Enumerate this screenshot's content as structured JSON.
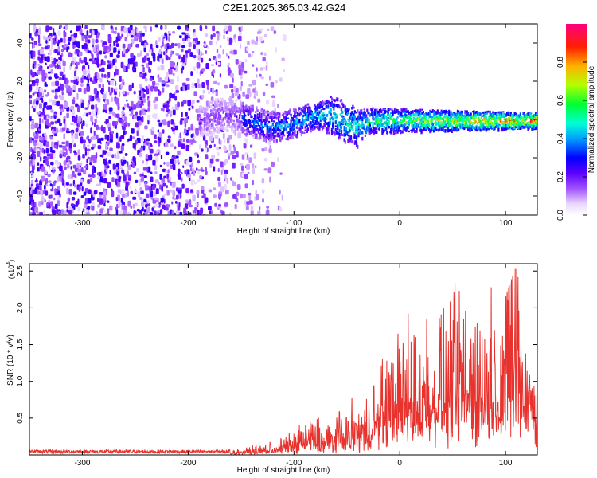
{
  "figure": {
    "title": "C2E1.2025.365.03.42.G24"
  },
  "chart_data": [
    {
      "type": "heatmap",
      "panel": "spectrogram",
      "xlabel": "Height of straight line (km)",
      "ylabel": "Frequency (Hz)",
      "xlim": [
        -350,
        130
      ],
      "ylim": [
        -50,
        50
      ],
      "xticks": [
        -300,
        -200,
        -100,
        0,
        100
      ],
      "yticks": [
        -40,
        -20,
        0,
        20,
        40
      ],
      "colorbar": {
        "label": "Normalized spectral amplitude",
        "range": [
          0,
          1
        ],
        "ticks": [
          0.0,
          0.2,
          0.4,
          0.6,
          0.8
        ],
        "colors": [
          "#ffffff",
          "#d9b8ff",
          "#9a4dff",
          "#6a00ff",
          "#0000ff",
          "#00b4ff",
          "#00ffd5",
          "#00ff40",
          "#c8ff00",
          "#ffb400",
          "#ff2000",
          "#ff0080"
        ]
      },
      "features": [
        {
          "name": "noise",
          "x_range": [
            -350,
            -140
          ],
          "freq_range": [
            -50,
            50
          ],
          "amplitude": 0.15
        },
        {
          "name": "signal_band",
          "x_range": [
            -190,
            130
          ],
          "center_freq_hz": 0,
          "amplitude_start": 0.3,
          "amplitude_end": 1.0
        }
      ]
    },
    {
      "type": "line",
      "panel": "snr",
      "xlabel": "Height of straight line (km)",
      "ylabel": "SNR (10 * v/v)",
      "y_scale_label": "(x10",
      "y_scale_exp": "4",
      "xlim": [
        -350,
        130
      ],
      "ylim": [
        0,
        2.6
      ],
      "xticks": [
        -300,
        -200,
        -100,
        0,
        100
      ],
      "yticks": [
        0.5,
        1.0,
        1.5,
        2.0,
        2.5
      ],
      "ytick_labels": [
        "0.5",
        "1.0",
        "1.5",
        "2.0",
        "2.5"
      ],
      "color": "#e8322d",
      "series": [
        {
          "name": "SNR",
          "x": [
            -350,
            -200,
            -160,
            -120,
            -100,
            -85,
            -70,
            -50,
            -30,
            -20,
            -10,
            0,
            20,
            40,
            60,
            80,
            100,
            110,
            120,
            130
          ],
          "values": [
            0.0,
            0.02,
            0.04,
            0.12,
            0.22,
            0.38,
            0.3,
            0.45,
            0.55,
            0.85,
            1.1,
            1.25,
            1.3,
            1.4,
            1.5,
            1.45,
            1.6,
            1.9,
            1.3,
            1.1
          ]
        }
      ]
    }
  ]
}
